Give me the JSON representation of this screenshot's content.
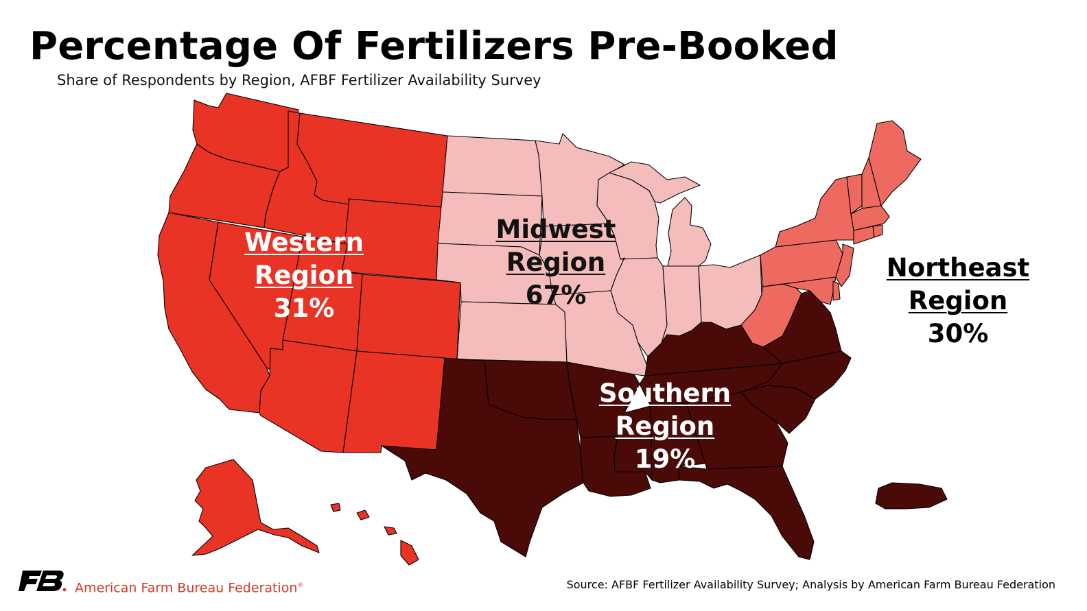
{
  "title": "Percentage Of Fertilizers Pre-Booked",
  "subtitle": "Share of Respondents by Region, AFBF Fertilizer Availability Survey",
  "regions": [
    {
      "id": "western",
      "name": "Western Region",
      "value": "31%",
      "fill": "#e83325"
    },
    {
      "id": "midwest",
      "name": "Midwest Region",
      "value": "67%",
      "fill": "#f5bcbc"
    },
    {
      "id": "southern",
      "name": "Southern Region",
      "value": "19%",
      "fill": "#4a0a08"
    },
    {
      "id": "northeast",
      "name": "Northeast Region",
      "value": "30%",
      "fill": "#ee6a60"
    }
  ],
  "footer": {
    "organization": "American Farm Bureau Federation",
    "registered_mark": "®",
    "source": "Source: AFBF Fertilizer Availability Survey; Analysis by American Farm Bureau Federation"
  },
  "colors": {
    "logo": "#000000",
    "logo_dot": "#d63a27",
    "state_border": "#000000"
  }
}
